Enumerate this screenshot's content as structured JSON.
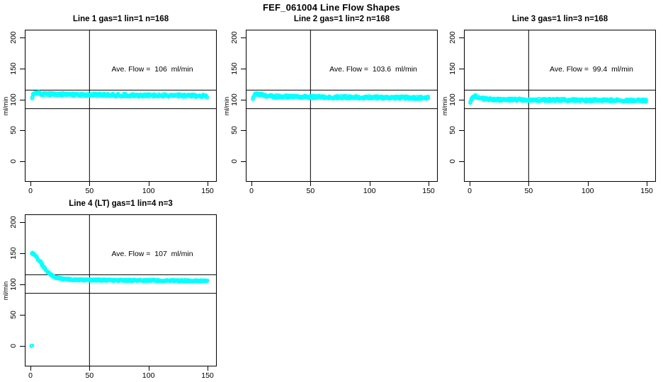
{
  "title": "FEF_061004  Line Flow Shapes",
  "colors": {
    "marker": "#00FFFF",
    "axis": "#000000",
    "background": "#FFFFFF",
    "text": "#000000"
  },
  "chart_data": [
    {
      "type": "scatter",
      "title": "Line 1 gas=1 lin=1 n=168",
      "params": {
        "line": "1",
        "gas": 1,
        "lin": 1,
        "n": 168
      },
      "annotation": "Ave. Flow =  106  ml/min",
      "ave_flow_ml_min": 106,
      "ylabel": "ml/min",
      "x_ticks": [
        0,
        50,
        100,
        150
      ],
      "y_ticks": [
        0,
        50,
        100,
        150,
        200
      ],
      "xlim": [
        -4,
        157
      ],
      "ylim": [
        -32,
        212
      ],
      "grid": false,
      "legend": null,
      "ref_hlines": [
        115,
        85
      ],
      "ref_vline": 50,
      "profile": [
        [
          1.5,
          104
        ],
        [
          2.5,
          107.5
        ],
        [
          4,
          111
        ],
        [
          6,
          110.5
        ],
        [
          10,
          108.5
        ],
        [
          20,
          108
        ],
        [
          40,
          107.5
        ],
        [
          70,
          107
        ],
        [
          100,
          106.5
        ],
        [
          130,
          106
        ],
        [
          150,
          105.5
        ]
      ],
      "band_halfwidth": 2.2,
      "extra_points": [
        [
          1.5,
          101.5
        ]
      ]
    },
    {
      "type": "scatter",
      "title": "Line 2 gas=1 lin=2 n=168",
      "params": {
        "line": "2",
        "gas": 1,
        "lin": 2,
        "n": 168
      },
      "annotation": "Ave. Flow =  103.6  ml/min",
      "ave_flow_ml_min": 103.6,
      "ylabel": "ml/min",
      "x_ticks": [
        0,
        50,
        100,
        150
      ],
      "y_ticks": [
        0,
        50,
        100,
        150,
        200
      ],
      "xlim": [
        -4,
        157
      ],
      "ylim": [
        -32,
        212
      ],
      "grid": false,
      "legend": null,
      "ref_hlines": [
        115,
        85
      ],
      "ref_vline": 50,
      "profile": [
        [
          1.5,
          103
        ],
        [
          2.5,
          106.5
        ],
        [
          4,
          109.5
        ],
        [
          6,
          109
        ],
        [
          10,
          106
        ],
        [
          20,
          104.5
        ],
        [
          40,
          104
        ],
        [
          70,
          103.5
        ],
        [
          100,
          103.2
        ],
        [
          130,
          102.8
        ],
        [
          150,
          102.5
        ]
      ],
      "band_halfwidth": 2.2,
      "extra_points": [
        [
          1.2,
          100.5
        ]
      ]
    },
    {
      "type": "scatter",
      "title": "Line 3 gas=1 lin=3 n=168",
      "params": {
        "line": "3",
        "gas": 1,
        "lin": 3,
        "n": 168
      },
      "annotation": "Ave. Flow =  99.4  ml/min",
      "ave_flow_ml_min": 99.4,
      "ylabel": "ml/min",
      "x_ticks": [
        0,
        50,
        100,
        150
      ],
      "y_ticks": [
        0,
        50,
        100,
        150,
        200
      ],
      "xlim": [
        -4,
        157
      ],
      "ylim": [
        -32,
        212
      ],
      "grid": false,
      "legend": null,
      "ref_hlines": [
        115,
        85
      ],
      "ref_vline": 50,
      "profile": [
        [
          0.8,
          96.5
        ],
        [
          2,
          102
        ],
        [
          4,
          106
        ],
        [
          6,
          104.5
        ],
        [
          10,
          101.5
        ],
        [
          15,
          100.3
        ],
        [
          25,
          99.6
        ],
        [
          50,
          99.2
        ],
        [
          100,
          98.8
        ],
        [
          150,
          98.3
        ]
      ],
      "band_halfwidth": 2.0,
      "extra_points": [
        [
          0.6,
          95.5
        ]
      ]
    },
    {
      "type": "scatter",
      "title": "Line 4 (LT) gas=1 lin=4 n=3",
      "params": {
        "line": "4 (LT)",
        "gas": 1,
        "lin": 4,
        "n": 3
      },
      "annotation": "Ave. Flow =  107  ml/min",
      "ave_flow_ml_min": 107,
      "ylabel": "ml/min",
      "x_ticks": [
        0,
        50,
        100,
        150
      ],
      "y_ticks": [
        0,
        50,
        100,
        150,
        200
      ],
      "xlim": [
        -4,
        157
      ],
      "ylim": [
        -32,
        212
      ],
      "grid": false,
      "legend": null,
      "ref_hlines": [
        115,
        85
      ],
      "ref_vline": 50,
      "profile": [
        [
          1,
          150.5
        ],
        [
          2,
          149.5
        ],
        [
          3,
          148
        ],
        [
          4,
          146.3
        ],
        [
          5,
          144
        ],
        [
          6,
          141.5
        ],
        [
          7,
          139
        ],
        [
          8,
          136.3
        ],
        [
          9,
          133.5
        ],
        [
          10,
          131
        ],
        [
          11,
          128.5
        ],
        [
          12,
          126
        ],
        [
          13,
          123.5
        ],
        [
          14,
          121
        ],
        [
          15,
          119
        ],
        [
          16,
          117
        ],
        [
          17,
          115.5
        ],
        [
          18,
          114
        ],
        [
          19,
          112.8
        ],
        [
          20,
          111.8
        ],
        [
          22,
          110.3
        ],
        [
          24,
          109.3
        ],
        [
          27,
          108.3
        ],
        [
          30,
          107.8
        ],
        [
          35,
          107.3
        ],
        [
          40,
          107
        ],
        [
          50,
          106.6
        ],
        [
          60,
          106.3
        ],
        [
          80,
          106
        ],
        [
          100,
          105.8
        ],
        [
          120,
          105.4
        ],
        [
          150,
          105
        ]
      ],
      "band_halfwidth": 1.3,
      "extra_points": [
        [
          0.7,
          0
        ],
        [
          1.4,
          0.6
        ]
      ]
    }
  ]
}
